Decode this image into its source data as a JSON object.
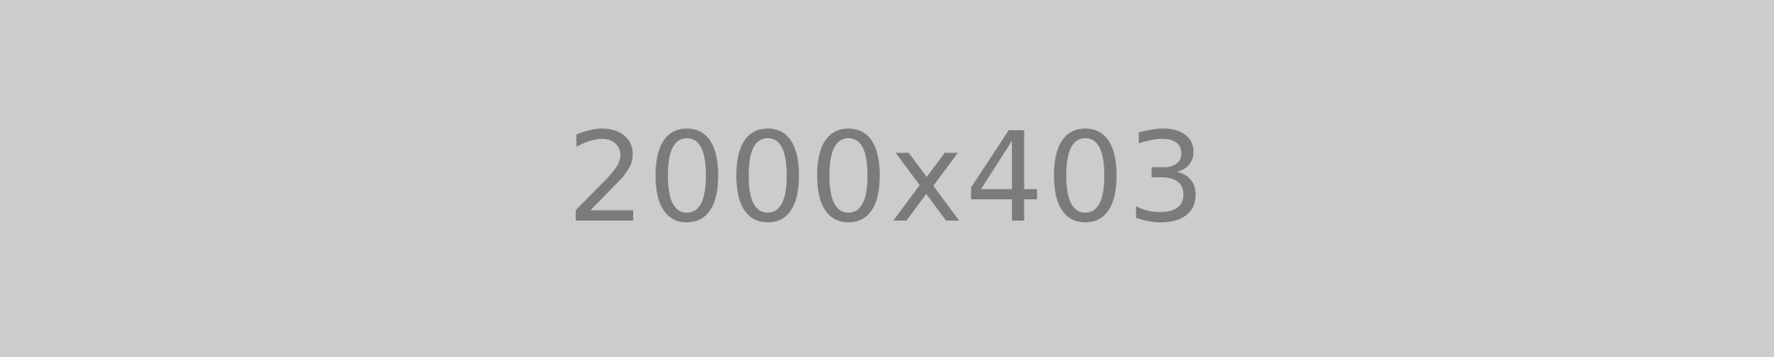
{
  "placeholder": {
    "label": "2000x403"
  },
  "colors": {
    "background": "#cccccc",
    "text": "#7b7b7b"
  }
}
